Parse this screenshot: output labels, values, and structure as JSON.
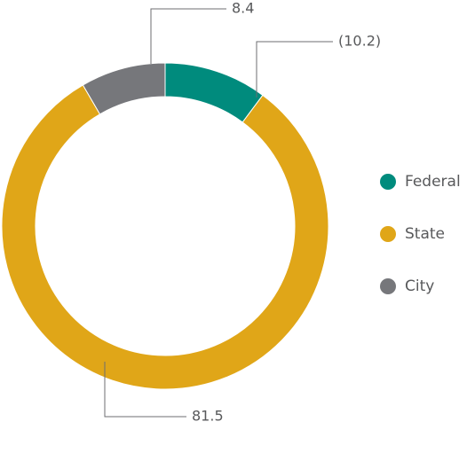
{
  "chart_data": {
    "type": "pie",
    "categories": [
      "Federal",
      "State",
      "City"
    ],
    "values": [
      10.2,
      81.5,
      8.4
    ],
    "value_labels": [
      "(10.2)",
      "81.5",
      "8.4"
    ],
    "colors": [
      "#008b7d",
      "#e0a618",
      "#76777b"
    ],
    "legend": "right"
  }
}
